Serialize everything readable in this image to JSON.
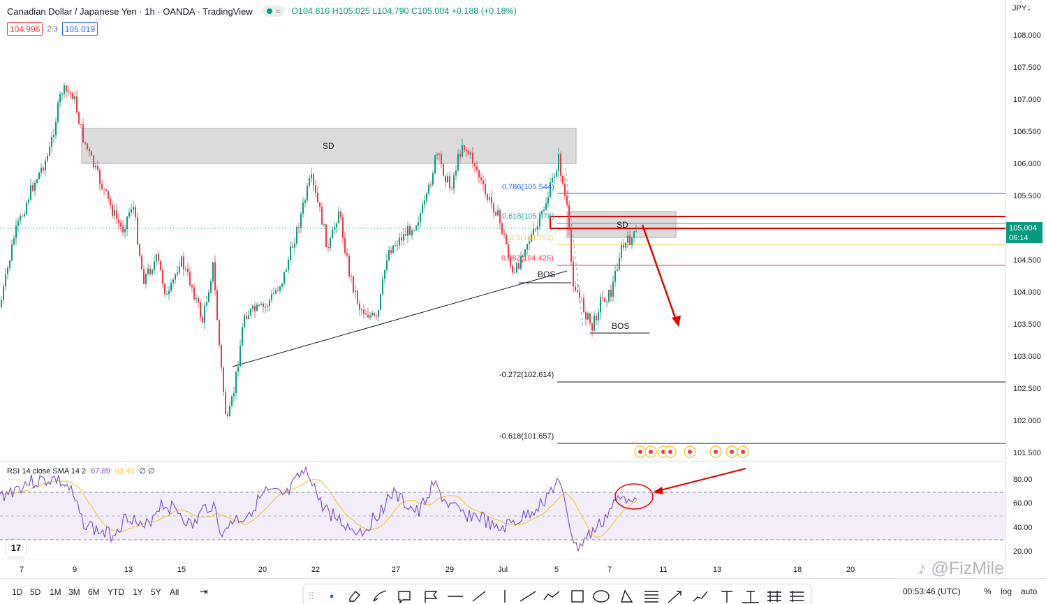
{
  "header": {
    "title": "Canadian Dollar / Japanese Yen · 1h · OANDA · TradingView",
    "ohlc": "O104.816 H105.025 L104.790 C105.004 +0.188 (+0.18%)"
  },
  "quote": {
    "bid": "104.996",
    "spread": "2.3",
    "ask": "105.019"
  },
  "price_axis": {
    "currency": "JPY",
    "ticks": [
      "108.000",
      "107.500",
      "107.000",
      "106.500",
      "106.000",
      "105.500",
      "105.004",
      "104.500",
      "104.000",
      "103.500",
      "103.000",
      "102.500",
      "102.000",
      "101.500"
    ],
    "last_price": "105.004",
    "countdown": "06:14"
  },
  "rsi_axis": {
    "ticks": [
      "80.00",
      "60.00",
      "40.00",
      "20.00"
    ]
  },
  "time_axis": {
    "ticks": [
      "7",
      "9",
      "13",
      "15",
      "20",
      "22",
      "27",
      "29",
      "Jul",
      "5",
      "7",
      "11",
      "13",
      "18",
      "20"
    ]
  },
  "annotations": {
    "sd_upper": "SD",
    "sd_lower": "SD",
    "bos_1": "BOS",
    "bos_2": "BOS",
    "fib_786": "0.786(105.544)",
    "fib_618": "0.618(105.078)",
    "fib_5": "0.5(104.752)",
    "fib_382": "0.382(104.425)",
    "fib_m272": "-0.272(102.614)",
    "fib_m618": "-0.618(101.657)"
  },
  "rsi": {
    "label": "RSI 14 close SMA 14 2",
    "value": "67.89",
    "sma": "63.46",
    "extra": "∅ ∅"
  },
  "ranges": [
    "1D",
    "5D",
    "1M",
    "3M",
    "6M",
    "YTD",
    "1Y",
    "5Y",
    "All"
  ],
  "clock": "00:53:46 (UTC)",
  "scale_buttons": {
    "percent": "%",
    "log": "log",
    "auto": "auto"
  },
  "watermark": "@FizMile",
  "toolbar_icons": [
    "drag-handle",
    "dot",
    "eraser",
    "brush",
    "rectangle",
    "flag",
    "horizontal-line",
    "trend-angle",
    "vertical-line",
    "trend-line",
    "polyline",
    "select-box",
    "circle",
    "triangle",
    "fib-levels",
    "path",
    "arrow-chart",
    "text-tool",
    "price-range",
    "hash-lines"
  ],
  "colors": {
    "up": "#089981",
    "down": "#f23645",
    "fib_blue": "#2962ff",
    "fib_yellow": "#f5d142",
    "rsi_line": "#7e57c2",
    "rsi_sma": "#f5c842",
    "rsi_band": "#ede7f6"
  }
}
